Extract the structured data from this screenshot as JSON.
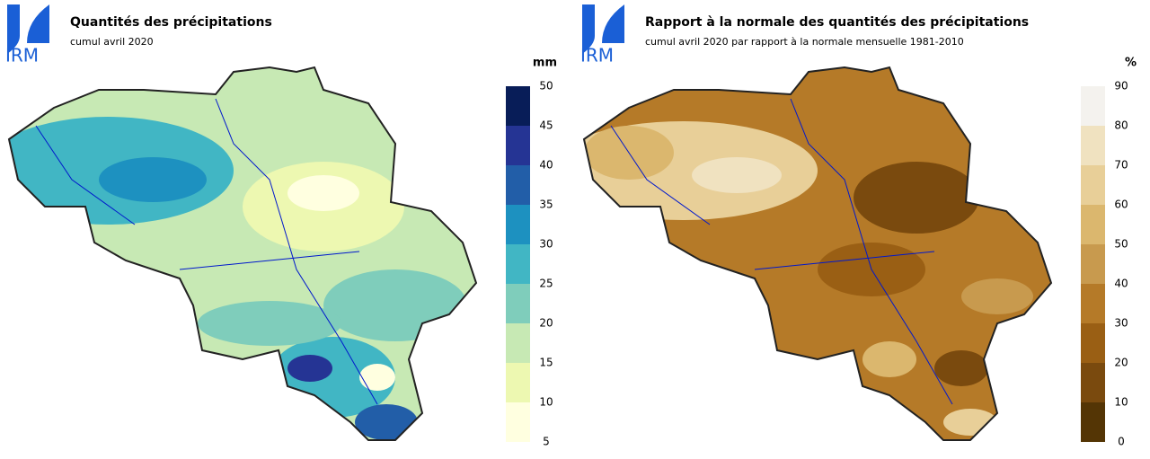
{
  "panels": [
    {
      "logo": "IRM",
      "title": "Quantités des précipitations",
      "subtitle": "cumul avril 2020",
      "unit": "mm",
      "legend": {
        "ticks": [
          5,
          10,
          15,
          20,
          25,
          30,
          35,
          40,
          45,
          50
        ],
        "colors": [
          "#ffffe0",
          "#edf8b1",
          "#c7e9b4",
          "#7fcdbb",
          "#41b6c4",
          "#1d91c0",
          "#225ea8",
          "#253494",
          "#081d58"
        ]
      }
    },
    {
      "logo": "IRM",
      "title": "Rapport à la normale des quantités des précipitations",
      "subtitle": "cumul avril 2020 par rapport à la normale mensuelle 1981-2010",
      "unit": "%",
      "legend": {
        "ticks": [
          0,
          10,
          20,
          30,
          40,
          50,
          60,
          70,
          80,
          90
        ],
        "colors": [
          "#543505",
          "#7a4a0e",
          "#9a5f14",
          "#b57a28",
          "#c89a4e",
          "#dbb76e",
          "#e8cf98",
          "#f0e2c0",
          "#f4f2ee"
        ]
      }
    }
  ]
}
